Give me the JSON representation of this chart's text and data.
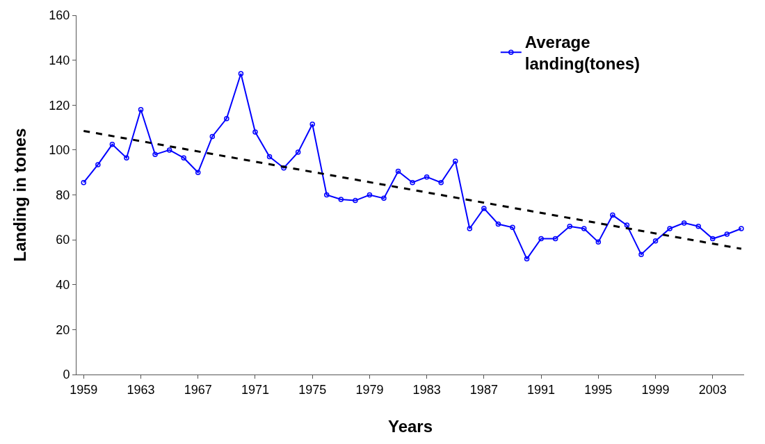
{
  "chart_data": {
    "type": "line",
    "xlabel": "Years",
    "ylabel": "Landing in tones",
    "x": [
      1959,
      1960,
      1961,
      1962,
      1963,
      1964,
      1965,
      1966,
      1967,
      1968,
      1969,
      1970,
      1971,
      1972,
      1973,
      1974,
      1975,
      1976,
      1977,
      1978,
      1979,
      1980,
      1981,
      1982,
      1983,
      1984,
      1985,
      1986,
      1987,
      1988,
      1989,
      1990,
      1991,
      1992,
      1993,
      1994,
      1995,
      1996,
      1997,
      1998,
      1999,
      2000,
      2001,
      2002,
      2003,
      2004,
      2005
    ],
    "series": [
      {
        "name": "Average landing(tones)",
        "color": "#0000ff",
        "marker": "circle",
        "line_style": "solid",
        "values": [
          85.5,
          93.5,
          102.5,
          96.5,
          118,
          98,
          100,
          96.5,
          90,
          106,
          114,
          134,
          108,
          97,
          92,
          99,
          111.5,
          80,
          78,
          77.5,
          80,
          78.5,
          90.5,
          85.5,
          88,
          85.5,
          95,
          65,
          74,
          67,
          65.5,
          51.5,
          60.5,
          60.5,
          66,
          65,
          59,
          71,
          66.5,
          53.5,
          59.5,
          65,
          67.5,
          66,
          60.5,
          62.5,
          65
        ]
      },
      {
        "type": "line",
        "color": "#000000",
        "marker": "none",
        "line_style": "dashed",
        "x": [
          1959,
          2005
        ],
        "values": [
          108.5,
          56
        ]
      }
    ],
    "xlim": [
      1958.5,
      2005.2
    ],
    "xticks": [
      1959,
      1963,
      1967,
      1971,
      1975,
      1979,
      1983,
      1987,
      1991,
      1995,
      1999,
      2003
    ],
    "ylim": [
      0,
      160
    ],
    "yticks": [
      0,
      20,
      40,
      60,
      80,
      100,
      120,
      140,
      160
    ],
    "legend": "top right"
  }
}
